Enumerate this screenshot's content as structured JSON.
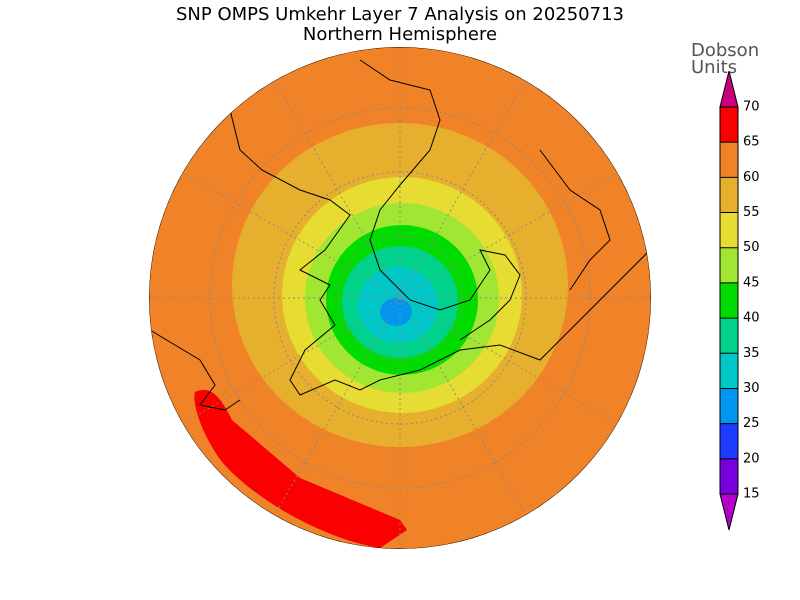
{
  "header": {
    "title": "SNP OMPS Umkehr Layer 7 Analysis on 20250713",
    "subtitle": "Northern Hemisphere"
  },
  "colorbar": {
    "unit_label": [
      "Dobson",
      "Units"
    ],
    "ticks": [
      15,
      20,
      25,
      30,
      35,
      40,
      45,
      50,
      55,
      60,
      65,
      70
    ],
    "colors": [
      "#b400c8",
      "#7800dc",
      "#1e3cff",
      "#0096f0",
      "#00c8c8",
      "#00d28c",
      "#00dc00",
      "#a0e632",
      "#e6dc32",
      "#e6af2d",
      "#f08228",
      "#fa0000",
      "#c8007a"
    ]
  }
}
